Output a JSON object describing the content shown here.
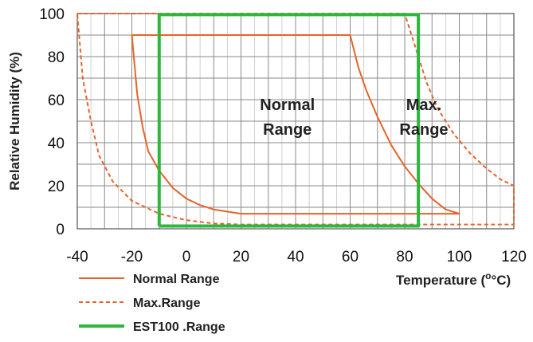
{
  "chart_data": {
    "type": "line",
    "xlabel": "Temperature (",
    "xlabel_unit": "°C)",
    "xlabel_degree": "o",
    "ylabel": "Relative Humidity (%)",
    "xlim": [
      -40,
      120
    ],
    "ylim": [
      0,
      100
    ],
    "x_ticks": [
      -40,
      -20,
      0,
      20,
      40,
      60,
      80,
      100,
      120
    ],
    "y_ticks": [
      0,
      20,
      40,
      60,
      80,
      100
    ],
    "x_tick_labels": [
      "-40",
      "-20",
      "0",
      "20",
      "40",
      "60",
      "80",
      "100",
      "120"
    ],
    "y_tick_labels": [
      "0",
      "20",
      "40",
      "60",
      "80",
      "100"
    ],
    "grid": true,
    "legend_position": "bottom-left",
    "annotations": [
      {
        "lines": [
          "Normal",
          "Range"
        ],
        "x": 37,
        "y": 50
      },
      {
        "lines": [
          "Max.",
          "Range"
        ],
        "x": 87,
        "y": 50
      }
    ],
    "series": [
      {
        "name": "Normal Range",
        "style": "solid",
        "color": "#e8632a",
        "points": [
          [
            -20,
            90
          ],
          [
            60,
            90
          ],
          [
            63,
            75
          ],
          [
            66,
            64
          ],
          [
            70,
            52
          ],
          [
            75,
            39
          ],
          [
            80,
            29
          ],
          [
            85,
            21
          ],
          [
            90,
            14
          ],
          [
            95,
            9
          ],
          [
            100,
            7
          ],
          [
            20,
            7
          ],
          [
            10,
            9
          ],
          [
            5,
            11
          ],
          [
            0,
            14
          ],
          [
            -5,
            19
          ],
          [
            -10,
            27
          ],
          [
            -14,
            36
          ],
          [
            -16,
            47
          ],
          [
            -18,
            62
          ],
          [
            -19,
            76
          ],
          [
            -20,
            90
          ]
        ]
      },
      {
        "name": "Max.Range",
        "style": "dashed",
        "color": "#e8632a",
        "points": [
          [
            -40,
            100
          ],
          [
            80,
            100
          ],
          [
            85,
            80
          ],
          [
            88,
            68
          ],
          [
            92,
            56
          ],
          [
            98,
            44
          ],
          [
            104,
            35
          ],
          [
            110,
            28
          ],
          [
            115,
            23
          ],
          [
            120,
            20
          ],
          [
            120,
            2
          ],
          [
            20,
            2
          ],
          [
            10,
            2.5
          ],
          [
            0,
            4
          ],
          [
            -10,
            7
          ],
          [
            -20,
            13
          ],
          [
            -27,
            22
          ],
          [
            -32,
            34
          ],
          [
            -35,
            50
          ],
          [
            -38,
            70
          ],
          [
            -40,
            100
          ]
        ]
      },
      {
        "name": "EST100 .Range",
        "style": "solid",
        "color": "#2db83d",
        "points": [
          [
            -10,
            1.3
          ],
          [
            85,
            1.3
          ],
          [
            85,
            99.5
          ],
          [
            -10,
            99.5
          ],
          [
            -10,
            1.3
          ]
        ]
      }
    ]
  }
}
